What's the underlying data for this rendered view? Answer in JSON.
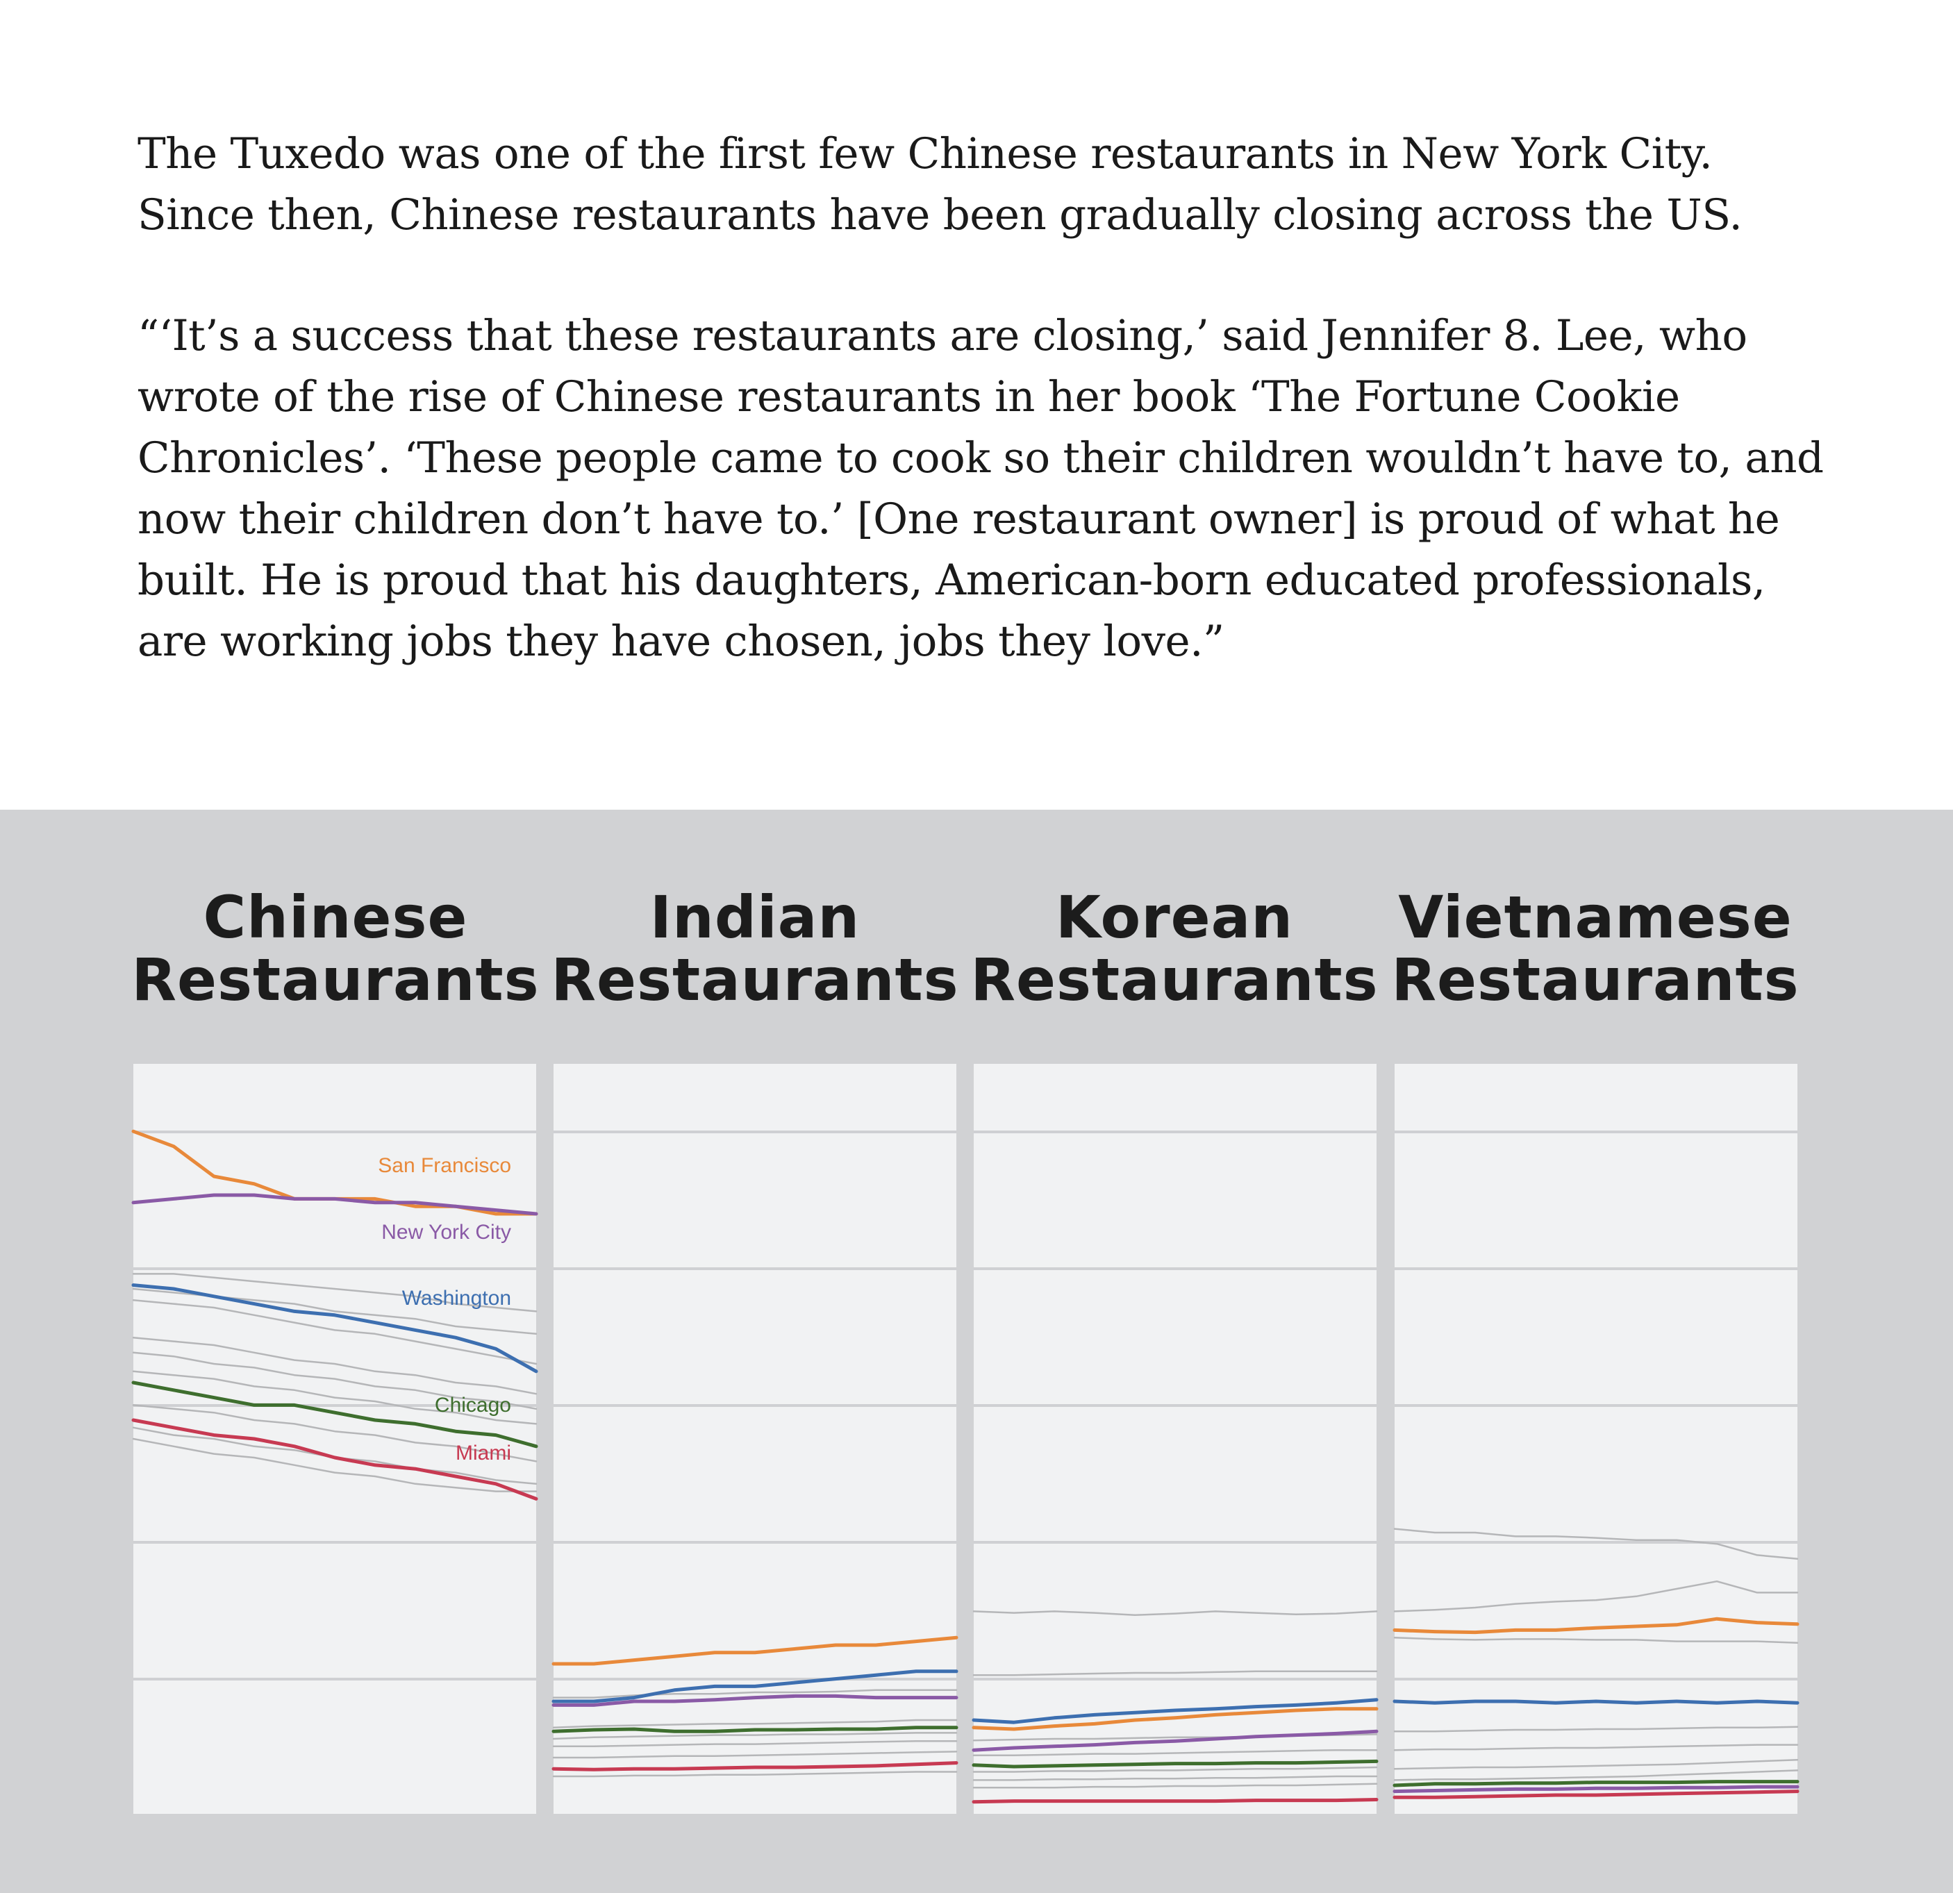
{
  "intro": {
    "p1": "The Tuxedo was one of the first few Chinese restaurants in New York City. Since then, Chinese restaurants have been gradually closing across the US.",
    "p2": "“‘It’s a success that these restaurants are closing,’ said Jennifer 8. Lee, who wrote of the rise of Chinese restaurants in her book ‘The Fortune Cookie Chronicles’. ‘These people came to cook so their children wouldn’t have to, and now their children don’t have to.’ [One restaurant owner] is proud of what he built. He is proud that his daughters, American-born educated professionals, are working jobs they have chosen, jobs they love.”"
  },
  "colors": {
    "band": "#d1d2d4",
    "panel": "#f1f2f3",
    "gridline": "#cfd0d3",
    "other_cities": "#b5b6b8",
    "San Francisco": "#e8893a",
    "New York City": "#8a5aa6",
    "Washington": "#3d6fb0",
    "Chicago": "#3e6e2e",
    "Miami": "#c73a52"
  },
  "panels": [
    {
      "line1": "Chinese",
      "line2": "Restaurants"
    },
    {
      "line1": "Indian",
      "line2": "Restaurants"
    },
    {
      "line1": "Korean",
      "line2": "Restaurants"
    },
    {
      "line1": "Vietnamese",
      "line2": "Restaurants"
    }
  ],
  "chart_data": [
    {
      "type": "line",
      "title": "Chinese Restaurants",
      "x": [
        0,
        0.1,
        0.2,
        0.3,
        0.4,
        0.5,
        0.6,
        0.7,
        0.8,
        0.9,
        1.0
      ],
      "ylim": [
        0,
        1
      ],
      "grid": true,
      "series": [
        {
          "name": "San Francisco",
          "labeled": true,
          "values": [
            0.91,
            0.89,
            0.85,
            0.84,
            0.82,
            0.82,
            0.82,
            0.81,
            0.81,
            0.8,
            0.8
          ]
        },
        {
          "name": "New York City",
          "labeled": true,
          "values": [
            0.815,
            0.82,
            0.825,
            0.825,
            0.82,
            0.82,
            0.815,
            0.815,
            0.81,
            0.805,
            0.8
          ]
        },
        {
          "name": "Washington",
          "labeled": true,
          "values": [
            0.705,
            0.7,
            0.69,
            0.68,
            0.67,
            0.665,
            0.655,
            0.645,
            0.635,
            0.62,
            0.59
          ]
        },
        {
          "name": "Chicago",
          "labeled": true,
          "values": [
            0.575,
            0.565,
            0.555,
            0.545,
            0.545,
            0.535,
            0.525,
            0.52,
            0.51,
            0.505,
            0.49
          ]
        },
        {
          "name": "Miami",
          "labeled": true,
          "values": [
            0.525,
            0.515,
            0.505,
            0.5,
            0.49,
            0.475,
            0.465,
            0.46,
            0.45,
            0.44,
            0.42
          ]
        },
        {
          "values": [
            0.72,
            0.72,
            0.715,
            0.71,
            0.705,
            0.7,
            0.695,
            0.69,
            0.68,
            0.675,
            0.67
          ]
        },
        {
          "values": [
            0.7,
            0.695,
            0.69,
            0.685,
            0.68,
            0.67,
            0.665,
            0.66,
            0.65,
            0.645,
            0.64
          ]
        },
        {
          "values": [
            0.685,
            0.68,
            0.675,
            0.665,
            0.655,
            0.645,
            0.64,
            0.63,
            0.62,
            0.61,
            0.6
          ]
        },
        {
          "values": [
            0.635,
            0.63,
            0.625,
            0.615,
            0.605,
            0.6,
            0.59,
            0.585,
            0.575,
            0.57,
            0.56
          ]
        },
        {
          "values": [
            0.615,
            0.61,
            0.6,
            0.595,
            0.585,
            0.58,
            0.57,
            0.565,
            0.555,
            0.55,
            0.54
          ]
        },
        {
          "values": [
            0.59,
            0.585,
            0.58,
            0.57,
            0.565,
            0.555,
            0.55,
            0.54,
            0.535,
            0.525,
            0.52
          ]
        },
        {
          "values": [
            0.545,
            0.54,
            0.535,
            0.525,
            0.52,
            0.51,
            0.505,
            0.495,
            0.49,
            0.48,
            0.47
          ]
        },
        {
          "values": [
            0.515,
            0.505,
            0.5,
            0.49,
            0.485,
            0.475,
            0.47,
            0.46,
            0.455,
            0.445,
            0.44
          ]
        },
        {
          "values": [
            0.5,
            0.49,
            0.48,
            0.475,
            0.465,
            0.455,
            0.45,
            0.44,
            0.435,
            0.43,
            0.43
          ]
        }
      ]
    },
    {
      "type": "line",
      "title": "Indian Restaurants",
      "x": [
        0,
        0.1,
        0.2,
        0.3,
        0.4,
        0.5,
        0.6,
        0.7,
        0.8,
        0.9,
        1.0
      ],
      "ylim": [
        0,
        1
      ],
      "grid": true,
      "series": [
        {
          "name": "San Francisco",
          "values": [
            0.2,
            0.2,
            0.205,
            0.21,
            0.215,
            0.215,
            0.22,
            0.225,
            0.225,
            0.23,
            0.235
          ]
        },
        {
          "name": "Washington",
          "values": [
            0.15,
            0.15,
            0.155,
            0.165,
            0.17,
            0.17,
            0.175,
            0.18,
            0.185,
            0.19,
            0.19
          ]
        },
        {
          "name": "New York City",
          "values": [
            0.145,
            0.145,
            0.15,
            0.15,
            0.152,
            0.155,
            0.157,
            0.157,
            0.155,
            0.155,
            0.155
          ]
        },
        {
          "name": "Chicago",
          "values": [
            0.11,
            0.112,
            0.113,
            0.11,
            0.11,
            0.112,
            0.112,
            0.113,
            0.113,
            0.115,
            0.115
          ]
        },
        {
          "name": "Miami",
          "values": [
            0.06,
            0.059,
            0.06,
            0.06,
            0.061,
            0.062,
            0.062,
            0.063,
            0.064,
            0.066,
            0.068
          ]
        },
        {
          "values": [
            0.155,
            0.155,
            0.158,
            0.16,
            0.16,
            0.162,
            0.162,
            0.163,
            0.165,
            0.165,
            0.165
          ]
        },
        {
          "values": [
            0.115,
            0.117,
            0.118,
            0.119,
            0.12,
            0.12,
            0.121,
            0.122,
            0.123,
            0.125,
            0.125
          ]
        },
        {
          "values": [
            0.1,
            0.102,
            0.103,
            0.104,
            0.105,
            0.105,
            0.106,
            0.106,
            0.107,
            0.108,
            0.108
          ]
        },
        {
          "values": [
            0.09,
            0.09,
            0.091,
            0.092,
            0.093,
            0.093,
            0.094,
            0.095,
            0.096,
            0.097,
            0.097
          ]
        },
        {
          "values": [
            0.075,
            0.075,
            0.076,
            0.077,
            0.077,
            0.078,
            0.079,
            0.08,
            0.081,
            0.082,
            0.083
          ]
        },
        {
          "values": [
            0.05,
            0.05,
            0.051,
            0.051,
            0.052,
            0.052,
            0.053,
            0.054,
            0.055,
            0.056,
            0.056
          ]
        }
      ]
    },
    {
      "type": "line",
      "title": "Korean Restaurants",
      "x": [
        0,
        0.1,
        0.2,
        0.3,
        0.4,
        0.5,
        0.6,
        0.7,
        0.8,
        0.9,
        1.0
      ],
      "ylim": [
        0,
        1
      ],
      "grid": true,
      "series": [
        {
          "values": [
            0.27,
            0.268,
            0.27,
            0.268,
            0.265,
            0.267,
            0.27,
            0.268,
            0.266,
            0.267,
            0.27
          ]
        },
        {
          "values": [
            0.185,
            0.185,
            0.186,
            0.187,
            0.188,
            0.188,
            0.189,
            0.19,
            0.19,
            0.19,
            0.19
          ]
        },
        {
          "name": "Washington",
          "values": [
            0.125,
            0.122,
            0.128,
            0.132,
            0.135,
            0.138,
            0.14,
            0.143,
            0.145,
            0.148,
            0.152
          ]
        },
        {
          "name": "San Francisco",
          "values": [
            0.115,
            0.113,
            0.117,
            0.12,
            0.125,
            0.128,
            0.132,
            0.135,
            0.138,
            0.14,
            0.14
          ]
        },
        {
          "name": "New York City",
          "values": [
            0.085,
            0.088,
            0.09,
            0.092,
            0.095,
            0.097,
            0.1,
            0.103,
            0.105,
            0.107,
            0.11
          ]
        },
        {
          "name": "Chicago",
          "values": [
            0.065,
            0.063,
            0.064,
            0.065,
            0.066,
            0.067,
            0.067,
            0.068,
            0.068,
            0.069,
            0.07
          ]
        },
        {
          "name": "Miami",
          "values": [
            0.016,
            0.017,
            0.017,
            0.017,
            0.017,
            0.017,
            0.017,
            0.018,
            0.018,
            0.018,
            0.019
          ]
        },
        {
          "values": [
            0.098,
            0.099,
            0.1,
            0.1,
            0.101,
            0.102,
            0.102,
            0.103,
            0.104,
            0.105,
            0.106
          ]
        },
        {
          "values": [
            0.078,
            0.078,
            0.079,
            0.08,
            0.08,
            0.081,
            0.082,
            0.083,
            0.084,
            0.085,
            0.085
          ]
        },
        {
          "values": [
            0.056,
            0.056,
            0.057,
            0.057,
            0.058,
            0.058,
            0.059,
            0.06,
            0.06,
            0.061,
            0.062
          ]
        },
        {
          "values": [
            0.045,
            0.045,
            0.046,
            0.046,
            0.047,
            0.047,
            0.048,
            0.048,
            0.049,
            0.05,
            0.05
          ]
        },
        {
          "values": [
            0.035,
            0.035,
            0.035,
            0.036,
            0.036,
            0.037,
            0.037,
            0.038,
            0.038,
            0.039,
            0.04
          ]
        }
      ]
    },
    {
      "type": "line",
      "title": "Vietnamese Restaurants",
      "x": [
        0,
        0.1,
        0.2,
        0.3,
        0.4,
        0.5,
        0.6,
        0.7,
        0.8,
        0.9,
        1.0
      ],
      "ylim": [
        0,
        1
      ],
      "grid": true,
      "series": [
        {
          "values": [
            0.38,
            0.375,
            0.375,
            0.37,
            0.37,
            0.368,
            0.365,
            0.365,
            0.36,
            0.345,
            0.34
          ]
        },
        {
          "values": [
            0.27,
            0.272,
            0.275,
            0.28,
            0.283,
            0.285,
            0.29,
            0.3,
            0.31,
            0.295,
            0.295
          ]
        },
        {
          "name": "San Francisco",
          "values": [
            0.245,
            0.243,
            0.242,
            0.245,
            0.245,
            0.248,
            0.25,
            0.252,
            0.26,
            0.255,
            0.253
          ]
        },
        {
          "values": [
            0.235,
            0.233,
            0.232,
            0.233,
            0.233,
            0.232,
            0.232,
            0.23,
            0.23,
            0.23,
            0.228
          ]
        },
        {
          "name": "Washington",
          "values": [
            0.15,
            0.148,
            0.15,
            0.15,
            0.148,
            0.15,
            0.148,
            0.15,
            0.148,
            0.15,
            0.148
          ]
        },
        {
          "values": [
            0.11,
            0.11,
            0.111,
            0.112,
            0.112,
            0.113,
            0.113,
            0.114,
            0.115,
            0.115,
            0.116
          ]
        },
        {
          "values": [
            0.085,
            0.086,
            0.086,
            0.087,
            0.088,
            0.088,
            0.089,
            0.09,
            0.091,
            0.092,
            0.092
          ]
        },
        {
          "values": [
            0.06,
            0.061,
            0.062,
            0.062,
            0.063,
            0.064,
            0.065,
            0.066,
            0.068,
            0.07,
            0.072
          ]
        },
        {
          "values": [
            0.045,
            0.046,
            0.046,
            0.047,
            0.048,
            0.049,
            0.05,
            0.052,
            0.054,
            0.056,
            0.058
          ]
        },
        {
          "name": "Chicago",
          "values": [
            0.038,
            0.04,
            0.04,
            0.041,
            0.041,
            0.042,
            0.042,
            0.042,
            0.043,
            0.043,
            0.043
          ]
        },
        {
          "name": "New York City",
          "values": [
            0.03,
            0.031,
            0.032,
            0.033,
            0.033,
            0.034,
            0.034,
            0.035,
            0.035,
            0.036,
            0.036
          ]
        },
        {
          "name": "Miami",
          "values": [
            0.022,
            0.022,
            0.023,
            0.024,
            0.025,
            0.025,
            0.026,
            0.027,
            0.028,
            0.029,
            0.03
          ]
        }
      ]
    }
  ]
}
